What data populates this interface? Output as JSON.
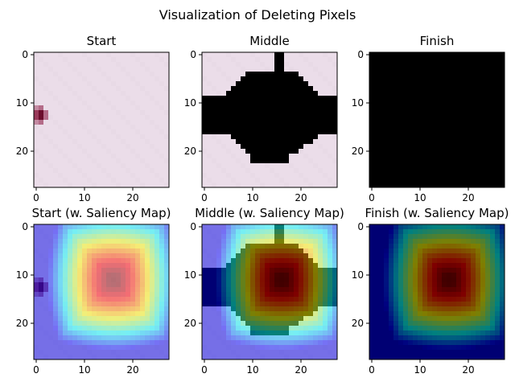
{
  "figure": {
    "title": "Visualization of Deleting Pixels"
  },
  "chart_data": [
    {
      "type": "heatmap",
      "title": "Start",
      "variant": "image",
      "xlim": [
        -0.5,
        27.5
      ],
      "ylim": [
        27.5,
        -0.5
      ],
      "xticks": [
        0,
        10,
        20
      ],
      "yticks": [
        0,
        10,
        20
      ],
      "deleted_pixel_mask": "none"
    },
    {
      "type": "heatmap",
      "title": "Middle",
      "variant": "image",
      "xlim": [
        -0.5,
        27.5
      ],
      "ylim": [
        27.5,
        -0.5
      ],
      "xticks": [
        0,
        10,
        20
      ],
      "yticks": [
        0,
        10,
        20
      ],
      "deleted_pixel_mask": "partial"
    },
    {
      "type": "heatmap",
      "title": "Finish",
      "variant": "image",
      "xlim": [
        -0.5,
        27.5
      ],
      "ylim": [
        27.5,
        -0.5
      ],
      "xticks": [
        0,
        10,
        20
      ],
      "yticks": [
        0,
        10,
        20
      ],
      "deleted_pixel_mask": "all"
    },
    {
      "type": "heatmap",
      "title": "Start (w. Saliency Map)",
      "variant": "saliency",
      "xlim": [
        -0.5,
        27.5
      ],
      "ylim": [
        27.5,
        -0.5
      ],
      "xticks": [
        0,
        10,
        20
      ],
      "yticks": [
        0,
        10,
        20
      ],
      "deleted_pixel_mask": "none",
      "colormap": "jet"
    },
    {
      "type": "heatmap",
      "title": "Middle (w. Saliency Map)",
      "variant": "saliency",
      "xlim": [
        -0.5,
        27.5
      ],
      "ylim": [
        27.5,
        -0.5
      ],
      "xticks": [
        0,
        10,
        20
      ],
      "yticks": [
        0,
        10,
        20
      ],
      "deleted_pixel_mask": "partial",
      "colormap": "jet"
    },
    {
      "type": "heatmap",
      "title": "Finish (w. Saliency Map)",
      "variant": "saliency",
      "xlim": [
        -0.5,
        27.5
      ],
      "ylim": [
        27.5,
        -0.5
      ],
      "xticks": [
        0,
        10,
        20
      ],
      "yticks": [
        0,
        10,
        20
      ],
      "deleted_pixel_mask": "all",
      "colormap": "jet"
    }
  ],
  "saliency_peak": {
    "row": 11,
    "col": 16
  },
  "colors": {
    "background_pixel": "#ebdde9",
    "mark_pixel": "#6b0d2c",
    "deleted_pixel": "#000000"
  }
}
